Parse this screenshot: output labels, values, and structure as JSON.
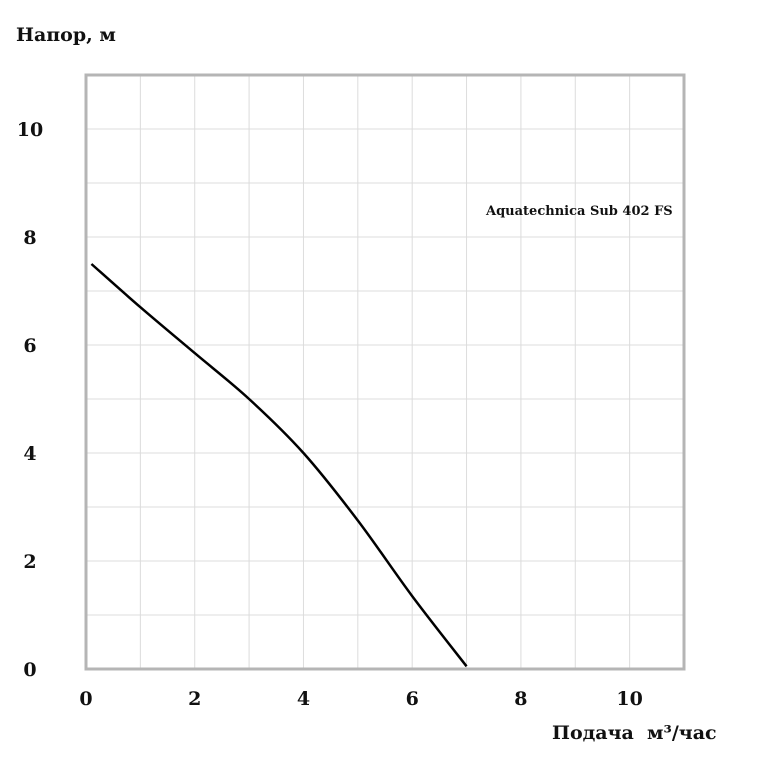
{
  "chart_data": {
    "type": "line",
    "ylabel": "Напор, м",
    "xlabel": "Подача  м³/час",
    "xlim": [
      0,
      11
    ],
    "ylim": [
      0,
      11
    ],
    "x_ticks": [
      0,
      2,
      4,
      6,
      8,
      10
    ],
    "y_ticks": [
      0,
      2,
      4,
      6,
      8,
      10
    ],
    "grid": true,
    "series": [
      {
        "name": "Aquatechnica Sub 402 FS",
        "color": "#000000",
        "x": [
          0.1,
          1,
          2,
          3,
          4,
          5,
          6,
          7
        ],
        "y": [
          7.5,
          6.7,
          5.85,
          5.0,
          4.0,
          2.75,
          1.35,
          0.05
        ]
      }
    ]
  }
}
